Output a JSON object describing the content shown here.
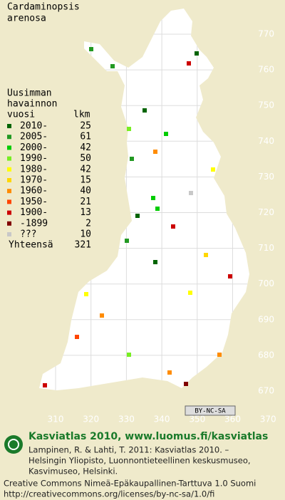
{
  "title": [
    "Cardaminopsis",
    "arenosa"
  ],
  "legend": {
    "heading": [
      "Uusimman",
      "havainnon",
      "vuosi"
    ],
    "count_heading": "lkm",
    "rows": [
      {
        "label": "2010-",
        "count": 25,
        "color": "#006400"
      },
      {
        "label": "2005-",
        "count": 61,
        "color": "#229922"
      },
      {
        "label": "2000-",
        "count": 42,
        "color": "#00cc00"
      },
      {
        "label": "1990-",
        "count": 50,
        "color": "#77ee22"
      },
      {
        "label": "1980-",
        "count": 42,
        "color": "#ffff00"
      },
      {
        "label": "1970-",
        "count": 15,
        "color": "#ffd700"
      },
      {
        "label": "1960-",
        "count": 40,
        "color": "#ff8c00"
      },
      {
        "label": "1950-",
        "count": 21,
        "color": "#ff4500"
      },
      {
        "label": "1900-",
        "count": 13,
        "color": "#cc0000"
      },
      {
        "label": "-1899",
        "count": 2,
        "color": "#800000"
      },
      {
        "label": "???",
        "count": 10,
        "color": "#c8c8c8"
      }
    ],
    "total_label": "Yhteensä",
    "total": 321
  },
  "y_ticks": [
    770,
    760,
    750,
    740,
    730,
    720,
    710,
    700,
    690,
    680,
    670
  ],
  "x_ticks": [
    310,
    320,
    330,
    340,
    350,
    360,
    370
  ],
  "license_badge": "BY-NC-SA",
  "footer": {
    "brand": "Kasviatlas 2010, www.luomus.fi/kasviatlas",
    "citation": [
      "Lampinen, R. & Lahti, T. 2011: Kasviatlas 2010. –",
      "Helsingin Yliopisto, Luonnontieteellinen keskusmuseo,",
      "Kasvimuseo, Helsinki."
    ],
    "license": [
      "Creative Commons Nimeä-Epäkaupallinen-Tarttuva 1.0 Suomi",
      "http://creativecommons.org/licenses/by-nc-sa/1.0/fi"
    ]
  }
}
